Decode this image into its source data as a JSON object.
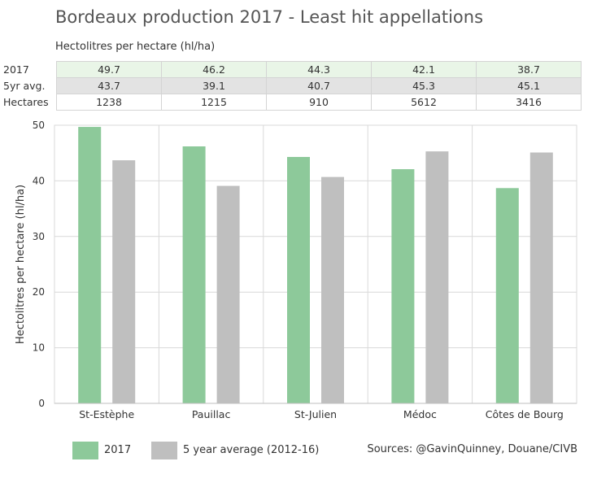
{
  "chart_data": {
    "type": "bar",
    "title": "Bordeaux production 2017 - Least hit appellations",
    "subtitle": "Hectolitres per hectare (hl/ha)",
    "ylabel": "Hectolitres per hectare (hl/ha)",
    "xlabel": "",
    "categories": [
      "St-Estèphe",
      "Pauillac",
      "St-Julien",
      "Médoc",
      "Côtes de Bourg"
    ],
    "series": [
      {
        "name": "2017",
        "values": [
          49.7,
          46.2,
          44.3,
          42.1,
          38.7
        ],
        "color": "#8dc99a"
      },
      {
        "name": "5 year average (2012-16)",
        "values": [
          43.7,
          39.1,
          40.7,
          45.3,
          45.1
        ],
        "color": "#bfbfbf"
      }
    ],
    "ylim": [
      0,
      50
    ],
    "yticks": [
      "0",
      "10",
      "20",
      "30",
      "40",
      "50"
    ],
    "grid": true,
    "legend_position": "bottom-left",
    "table": {
      "rows": [
        {
          "label": "2017",
          "values": [
            "49.7",
            "46.2",
            "44.3",
            "42.1",
            "38.7"
          ]
        },
        {
          "label": "5yr avg.",
          "values": [
            "43.7",
            "39.1",
            "40.7",
            "45.3",
            "45.1"
          ]
        },
        {
          "label": "Hectares",
          "values": [
            "1238",
            "1215",
            "910",
            "5612",
            "3416"
          ]
        }
      ]
    },
    "source": "Sources: @GavinQuinney, Douane/CIVB"
  }
}
